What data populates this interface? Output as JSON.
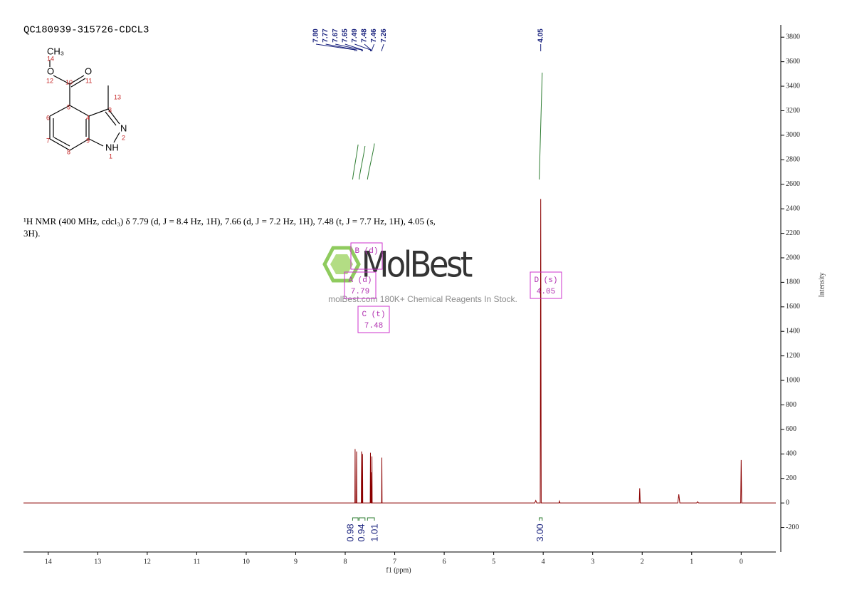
{
  "chart_data": {
    "type": "nmr",
    "title": "QC180939-315726-CDCL3",
    "x_label": "f1 (ppm)",
    "y_label": "Intensity",
    "xlim": [
      14.5,
      -0.7
    ],
    "xticks": [
      14,
      13,
      12,
      11,
      10,
      9,
      8,
      7,
      6,
      5,
      4,
      3,
      2,
      1,
      0
    ],
    "ylim": [
      -400,
      3900
    ],
    "yticks": [
      -200,
      0,
      200,
      400,
      600,
      800,
      1000,
      1200,
      1400,
      1600,
      1800,
      2000,
      2200,
      2400,
      2600,
      2800,
      3000,
      3200,
      3400,
      3600,
      3800
    ],
    "series": [
      {
        "color": "#8b0000",
        "x": [
          14.5,
          7.805,
          7.8,
          7.795,
          7.775,
          7.77,
          7.765,
          7.675,
          7.67,
          7.665,
          7.655,
          7.65,
          7.645,
          7.495,
          7.49,
          7.485,
          7.48,
          7.475,
          7.465,
          7.46,
          7.455,
          7.265,
          7.26,
          7.255,
          4.17,
          4.15,
          4.13,
          4.06,
          4.05,
          4.04,
          3.68,
          3.67,
          3.66,
          2.06,
          2.05,
          2.04,
          1.28,
          1.26,
          1.24,
          0.9,
          0.88,
          0.86,
          0.01,
          0,
          -0.01,
          -0.7
        ],
        "values": [
          0,
          0,
          440,
          0,
          0,
          420,
          0,
          0,
          420,
          0,
          0,
          400,
          0,
          0,
          410,
          0,
          250,
          0,
          0,
          380,
          0,
          0,
          370,
          0,
          0,
          20,
          0,
          0,
          2480,
          0,
          0,
          15,
          0,
          0,
          120,
          0,
          0,
          70,
          0,
          0,
          10,
          0,
          0,
          350,
          0,
          0
        ]
      }
    ],
    "peak_labels": [
      {
        "value": 7.8,
        "label": "7.80"
      },
      7.77,
      7.67,
      7.65,
      7.49,
      7.48,
      7.46,
      7.26,
      4.05
    ],
    "peak_label_color": "#1a237e",
    "integrals": {
      "color": "#2e7d32",
      "ranges": [
        [
          7.85,
          7.74
        ],
        [
          7.72,
          7.6
        ],
        [
          7.55,
          7.41
        ],
        [
          4.08,
          4.02
        ]
      ],
      "values": [
        0.98,
        0.94,
        1.01,
        3
      ],
      "value_labels": [
        "0.98",
        "0.94",
        "1.01",
        "3.00"
      ]
    },
    "multiplets": [
      {
        "name": "A (d)",
        "shift": 7.79
      },
      {
        "name": "B (d)"
      },
      {
        "name": "C (t)",
        "shift": 7.48
      },
      {
        "name": "D (s)",
        "shift": 4.05
      }
    ]
  },
  "description": "¹H NMR (400 MHz, cdcl₃) δ 7.79 (d, J = 8.4 Hz, 1H), 7.66 (d, J = 7.2 Hz, 1H), 7.48 (t, J = 7.7 Hz, 1H), 4.05 (s, 3H).",
  "molecule": {
    "atoms": [
      "CH₃",
      "14",
      "O",
      "12",
      "10",
      "O",
      "11",
      "13",
      "3",
      "5",
      "4",
      "6",
      "N",
      "2",
      "7",
      "9",
      "8",
      "NH",
      "1"
    ]
  },
  "watermark": {
    "brand": "MolBest",
    "tagline": "molBest.com 180K+ Chemical Reagents In Stock."
  }
}
